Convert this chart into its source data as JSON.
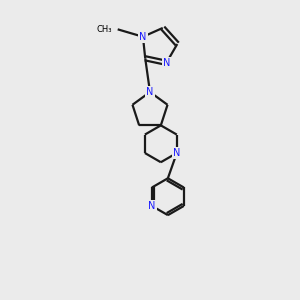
{
  "bg_color": "#ebebeb",
  "bond_color": "#1a1a1a",
  "atom_color": "#1a1aff",
  "lw": 1.6,
  "fs": 7.0,
  "dpi": 100,
  "figsize": [
    3.0,
    3.0
  ],
  "xlim": [
    -1.0,
    5.0
  ],
  "ylim": [
    -0.5,
    9.5
  ]
}
